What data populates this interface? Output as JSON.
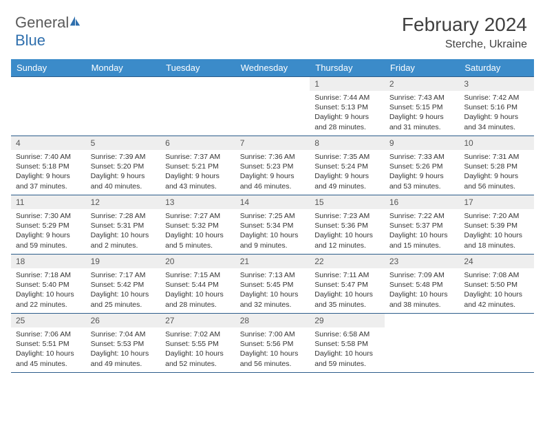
{
  "logo": {
    "text1": "General",
    "text2": "Blue"
  },
  "title": "February 2024",
  "location": "Sterche, Ukraine",
  "colors": {
    "header_bg": "#3b8bc9",
    "header_text": "#ffffff",
    "cell_border": "#2a5b8a",
    "daynum_bg": "#eeeeee",
    "body_text": "#333333",
    "logo_gray": "#5a5a5a",
    "logo_blue": "#2f6fad"
  },
  "dayNames": [
    "Sunday",
    "Monday",
    "Tuesday",
    "Wednesday",
    "Thursday",
    "Friday",
    "Saturday"
  ],
  "weeks": [
    [
      null,
      null,
      null,
      null,
      {
        "n": "1",
        "sr": "7:44 AM",
        "ss": "5:13 PM",
        "dlh": "9",
        "dlm": "28"
      },
      {
        "n": "2",
        "sr": "7:43 AM",
        "ss": "5:15 PM",
        "dlh": "9",
        "dlm": "31"
      },
      {
        "n": "3",
        "sr": "7:42 AM",
        "ss": "5:16 PM",
        "dlh": "9",
        "dlm": "34"
      }
    ],
    [
      {
        "n": "4",
        "sr": "7:40 AM",
        "ss": "5:18 PM",
        "dlh": "9",
        "dlm": "37"
      },
      {
        "n": "5",
        "sr": "7:39 AM",
        "ss": "5:20 PM",
        "dlh": "9",
        "dlm": "40"
      },
      {
        "n": "6",
        "sr": "7:37 AM",
        "ss": "5:21 PM",
        "dlh": "9",
        "dlm": "43"
      },
      {
        "n": "7",
        "sr": "7:36 AM",
        "ss": "5:23 PM",
        "dlh": "9",
        "dlm": "46"
      },
      {
        "n": "8",
        "sr": "7:35 AM",
        "ss": "5:24 PM",
        "dlh": "9",
        "dlm": "49"
      },
      {
        "n": "9",
        "sr": "7:33 AM",
        "ss": "5:26 PM",
        "dlh": "9",
        "dlm": "53"
      },
      {
        "n": "10",
        "sr": "7:31 AM",
        "ss": "5:28 PM",
        "dlh": "9",
        "dlm": "56"
      }
    ],
    [
      {
        "n": "11",
        "sr": "7:30 AM",
        "ss": "5:29 PM",
        "dlh": "9",
        "dlm": "59"
      },
      {
        "n": "12",
        "sr": "7:28 AM",
        "ss": "5:31 PM",
        "dlh": "10",
        "dlm": "2"
      },
      {
        "n": "13",
        "sr": "7:27 AM",
        "ss": "5:32 PM",
        "dlh": "10",
        "dlm": "5"
      },
      {
        "n": "14",
        "sr": "7:25 AM",
        "ss": "5:34 PM",
        "dlh": "10",
        "dlm": "9"
      },
      {
        "n": "15",
        "sr": "7:23 AM",
        "ss": "5:36 PM",
        "dlh": "10",
        "dlm": "12"
      },
      {
        "n": "16",
        "sr": "7:22 AM",
        "ss": "5:37 PM",
        "dlh": "10",
        "dlm": "15"
      },
      {
        "n": "17",
        "sr": "7:20 AM",
        "ss": "5:39 PM",
        "dlh": "10",
        "dlm": "18"
      }
    ],
    [
      {
        "n": "18",
        "sr": "7:18 AM",
        "ss": "5:40 PM",
        "dlh": "10",
        "dlm": "22"
      },
      {
        "n": "19",
        "sr": "7:17 AM",
        "ss": "5:42 PM",
        "dlh": "10",
        "dlm": "25"
      },
      {
        "n": "20",
        "sr": "7:15 AM",
        "ss": "5:44 PM",
        "dlh": "10",
        "dlm": "28"
      },
      {
        "n": "21",
        "sr": "7:13 AM",
        "ss": "5:45 PM",
        "dlh": "10",
        "dlm": "32"
      },
      {
        "n": "22",
        "sr": "7:11 AM",
        "ss": "5:47 PM",
        "dlh": "10",
        "dlm": "35"
      },
      {
        "n": "23",
        "sr": "7:09 AM",
        "ss": "5:48 PM",
        "dlh": "10",
        "dlm": "38"
      },
      {
        "n": "24",
        "sr": "7:08 AM",
        "ss": "5:50 PM",
        "dlh": "10",
        "dlm": "42"
      }
    ],
    [
      {
        "n": "25",
        "sr": "7:06 AM",
        "ss": "5:51 PM",
        "dlh": "10",
        "dlm": "45"
      },
      {
        "n": "26",
        "sr": "7:04 AM",
        "ss": "5:53 PM",
        "dlh": "10",
        "dlm": "49"
      },
      {
        "n": "27",
        "sr": "7:02 AM",
        "ss": "5:55 PM",
        "dlh": "10",
        "dlm": "52"
      },
      {
        "n": "28",
        "sr": "7:00 AM",
        "ss": "5:56 PM",
        "dlh": "10",
        "dlm": "56"
      },
      {
        "n": "29",
        "sr": "6:58 AM",
        "ss": "5:58 PM",
        "dlh": "10",
        "dlm": "59"
      },
      null,
      null
    ]
  ],
  "labels": {
    "sunrise": "Sunrise:",
    "sunset": "Sunset:",
    "daylight": "Daylight:",
    "hours": "hours",
    "and": "and",
    "minutes": "minutes."
  }
}
